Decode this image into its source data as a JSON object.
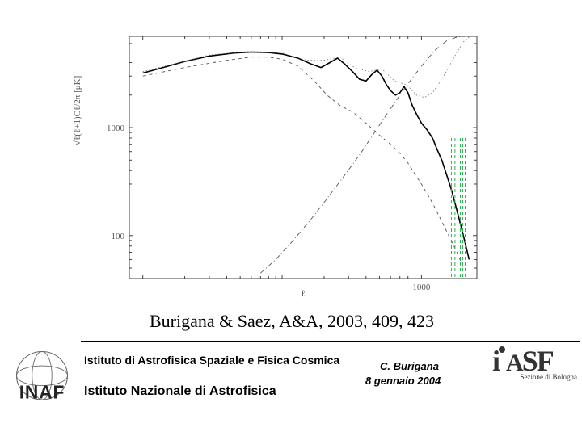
{
  "chart": {
    "type": "line",
    "xscale": "log",
    "yscale": "log",
    "xlim": [
      8,
      2500
    ],
    "ylim": [
      40,
      7000
    ],
    "xticks": [
      10,
      100,
      1000
    ],
    "xticklabels": [
      "",
      "",
      "1000"
    ],
    "yticks": [
      100,
      1000
    ],
    "yticklabels": [
      "100",
      "1000"
    ],
    "ylabel": "√ℓ(ℓ+1)Cℓ/2π   [μK]",
    "xlabel": "ℓ",
    "background_color": "#ffffff",
    "axis_color": "#404040",
    "grid": false,
    "axis_fontsize": 11,
    "series": [
      {
        "name": "main-solid",
        "color": "#000000",
        "linewidth": 1.6,
        "dash": "none",
        "points": [
          [
            10,
            3200
          ],
          [
            14,
            3600
          ],
          [
            20,
            4100
          ],
          [
            30,
            4600
          ],
          [
            45,
            4900
          ],
          [
            60,
            5000
          ],
          [
            80,
            4950
          ],
          [
            100,
            4800
          ],
          [
            130,
            4400
          ],
          [
            160,
            3900
          ],
          [
            190,
            3600
          ],
          [
            220,
            4000
          ],
          [
            250,
            4400
          ],
          [
            280,
            3900
          ],
          [
            320,
            3300
          ],
          [
            360,
            2800
          ],
          [
            400,
            2700
          ],
          [
            440,
            3100
          ],
          [
            480,
            3400
          ],
          [
            520,
            3000
          ],
          [
            560,
            2500
          ],
          [
            600,
            2200
          ],
          [
            650,
            2000
          ],
          [
            700,
            2100
          ],
          [
            750,
            2400
          ],
          [
            800,
            2100
          ],
          [
            860,
            1600
          ],
          [
            930,
            1300
          ],
          [
            1000,
            1100
          ],
          [
            1100,
            950
          ],
          [
            1200,
            800
          ],
          [
            1300,
            620
          ],
          [
            1400,
            500
          ],
          [
            1500,
            380
          ],
          [
            1650,
            260
          ],
          [
            1800,
            170
          ],
          [
            2000,
            100
          ],
          [
            2200,
            60
          ]
        ]
      },
      {
        "name": "lower-dashed",
        "color": "#555555",
        "linewidth": 0.9,
        "dash": "4 4",
        "points": [
          [
            10,
            3000
          ],
          [
            20,
            3600
          ],
          [
            40,
            4200
          ],
          [
            60,
            4500
          ],
          [
            80,
            4500
          ],
          [
            100,
            4300
          ],
          [
            130,
            3700
          ],
          [
            170,
            2700
          ],
          [
            210,
            2000
          ],
          [
            260,
            1600
          ],
          [
            320,
            1400
          ],
          [
            400,
            1100
          ],
          [
            500,
            850
          ],
          [
            600,
            700
          ],
          [
            700,
            580
          ],
          [
            800,
            470
          ],
          [
            900,
            370
          ],
          [
            1000,
            300
          ],
          [
            1200,
            200
          ],
          [
            1400,
            135
          ],
          [
            1600,
            95
          ],
          [
            1800,
            70
          ],
          [
            2000,
            50
          ]
        ]
      },
      {
        "name": "rising-dashdot",
        "color": "#555555",
        "linewidth": 0.9,
        "dash": "6 3 1 3",
        "points": [
          [
            70,
            45
          ],
          [
            90,
            60
          ],
          [
            120,
            90
          ],
          [
            160,
            140
          ],
          [
            210,
            220
          ],
          [
            280,
            360
          ],
          [
            360,
            560
          ],
          [
            460,
            900
          ],
          [
            580,
            1400
          ],
          [
            720,
            2100
          ],
          [
            880,
            3000
          ],
          [
            1050,
            4000
          ],
          [
            1250,
            5200
          ],
          [
            1500,
            6300
          ],
          [
            1800,
            6900
          ],
          [
            2100,
            7000
          ],
          [
            2400,
            7000
          ]
        ]
      },
      {
        "name": "upper-dotted",
        "color": "#777777",
        "linewidth": 0.8,
        "dash": "1.5 2.5",
        "points": [
          [
            10,
            3300
          ],
          [
            30,
            4700
          ],
          [
            60,
            5100
          ],
          [
            100,
            4900
          ],
          [
            150,
            4200
          ],
          [
            200,
            4200
          ],
          [
            260,
            4500
          ],
          [
            330,
            3600
          ],
          [
            420,
            3300
          ],
          [
            520,
            3500
          ],
          [
            640,
            2700
          ],
          [
            780,
            2500
          ],
          [
            920,
            2000
          ],
          [
            1050,
            1900
          ],
          [
            1200,
            2100
          ],
          [
            1400,
            2800
          ],
          [
            1600,
            3800
          ],
          [
            1800,
            5000
          ],
          [
            2000,
            6200
          ],
          [
            2200,
            6900
          ]
        ]
      }
    ],
    "vlines": [
      {
        "x": 1640,
        "color": "#2bb24c",
        "dash": "4 3",
        "linewidth": 1.0
      },
      {
        "x": 1740,
        "color": "#2bb24c",
        "dash": "4 3",
        "linewidth": 1.0
      },
      {
        "x": 1900,
        "color": "#2bb24c",
        "dash": "4 3",
        "linewidth": 1.0
      },
      {
        "x": 1980,
        "color": "#2bb24c",
        "dash": "4 3",
        "linewidth": 1.0
      },
      {
        "x": 2060,
        "color": "#2bb24c",
        "dash": "4 3",
        "linewidth": 1.0
      }
    ],
    "vline_yrange": [
      40,
      800
    ]
  },
  "citation": "Burigana & Saez, A&A, 2003, 409, 423",
  "footer": {
    "affil1": "Istituto di Astrofisica Spaziale e Fisica Cosmica",
    "affil2": "Istituto Nazionale di Astrofisica",
    "author": "C. Burigana",
    "date": "8 gennaio 2004",
    "iasf_sub": "Sezione di Bologna",
    "inaf_abbr": "INAF",
    "iasf_abbr": "iASF"
  },
  "colors": {
    "text": "#000000",
    "logo_gray": "#333333",
    "logo_outline": "#666666"
  }
}
